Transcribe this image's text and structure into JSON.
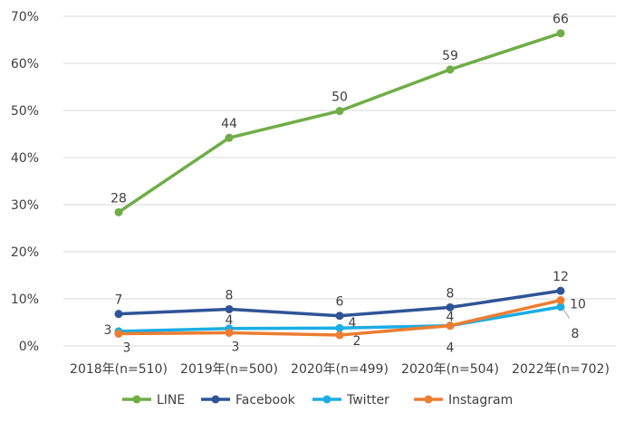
{
  "chart_data": {
    "type": "line",
    "categories": [
      "2018年(n=510)",
      "2019年(n=500)",
      "2020年(n=499)",
      "2020年(n=504)",
      "2022年(n=702)"
    ],
    "y_tick_labels": [
      "0%",
      "10%",
      "20%",
      "30%",
      "40%",
      "50%",
      "60%",
      "70%"
    ],
    "ylim": [
      0,
      70
    ],
    "grid": true,
    "legend_position": "bottom",
    "series": [
      {
        "name": "LINE",
        "color": "#70ad47",
        "values": [
          28.4,
          44.2,
          49.9,
          58.7,
          66.4
        ],
        "labels": [
          "28",
          "44",
          "50",
          "59",
          "66"
        ]
      },
      {
        "name": "Facebook",
        "color": "#2f5496",
        "values": [
          6.8,
          7.8,
          6.4,
          8.2,
          11.7
        ],
        "labels": [
          "7",
          "8",
          "6",
          "8",
          "12"
        ]
      },
      {
        "name": "Twitter",
        "color": "#1cade4",
        "values": [
          3.1,
          3.7,
          3.8,
          4.3,
          8.3
        ],
        "labels": [
          "3",
          "4",
          "4",
          "4",
          "8"
        ]
      },
      {
        "name": "Instagram",
        "color": "#ed7d31",
        "values": [
          2.6,
          2.8,
          2.3,
          4.3,
          9.7
        ],
        "labels": [
          "3",
          "3",
          "2",
          "4",
          "10"
        ]
      }
    ]
  }
}
